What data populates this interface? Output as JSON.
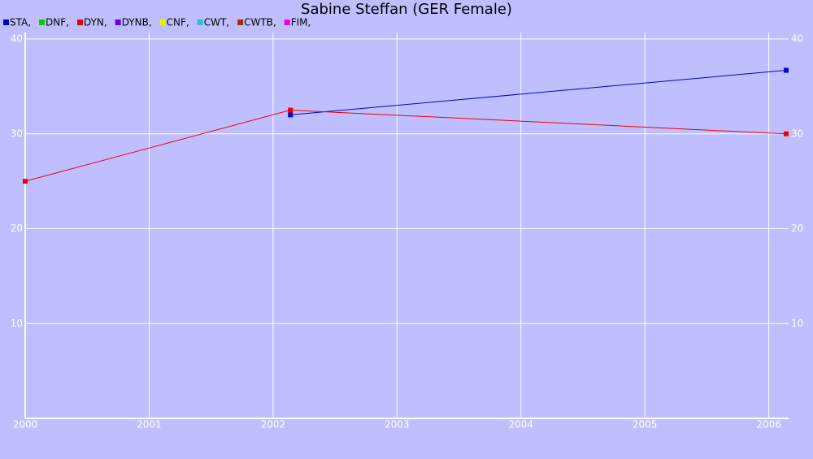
{
  "chart_data": {
    "type": "line",
    "title": "Sabine Steffan (GER Female)",
    "series": [
      {
        "name": "STA,",
        "color": "#0000cc",
        "x": [
          2002.14,
          2006.14
        ],
        "values": [
          32,
          36.7
        ]
      },
      {
        "name": "DNF,",
        "color": "#00cc00",
        "x": [],
        "values": []
      },
      {
        "name": "DYN,",
        "color": "#ee0000",
        "x": [
          2000.0,
          2002.14,
          2006.14
        ],
        "values": [
          25,
          32.5,
          30
        ]
      },
      {
        "name": "DYNB,",
        "color": "#6600ee",
        "x": [],
        "values": []
      },
      {
        "name": "CNF,",
        "color": "#eeee00",
        "x": [],
        "values": []
      },
      {
        "name": "CWT,",
        "color": "#33bbdd",
        "x": [],
        "values": []
      },
      {
        "name": "CWTB,",
        "color": "#993300",
        "x": [],
        "values": []
      },
      {
        "name": "FIM,",
        "color": "#ee00ee",
        "x": [],
        "values": []
      }
    ],
    "xlim": [
      2000,
      2006.16
    ],
    "xticks": [
      2000,
      2001,
      2002,
      2003,
      2004,
      2005,
      2006
    ],
    "ylim": [
      0,
      40
    ],
    "yticks": [
      10,
      20,
      30,
      40
    ],
    "y2lim": [
      0,
      40
    ],
    "y2ticks": [
      10,
      20,
      30,
      40
    ],
    "grid": true,
    "legend": "top-left"
  }
}
